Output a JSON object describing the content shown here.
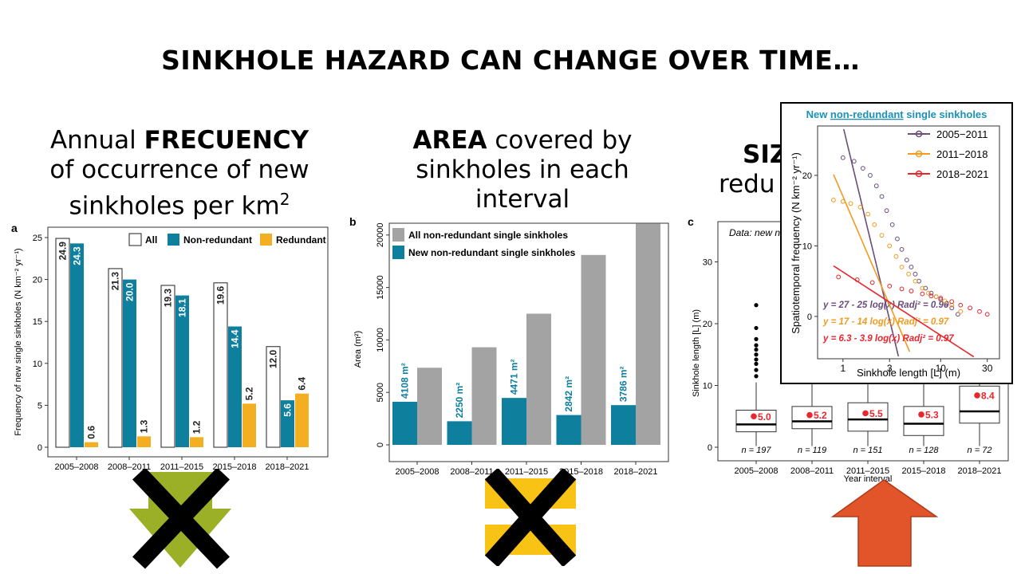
{
  "title": "SINKHOLE HAZARD CAN CHANGE OVER TIME…",
  "headings": {
    "a": {
      "pre": "Annual ",
      "bold": "FRECUENCY",
      "line2": "of occurrence of new",
      "line3": "sinkholes per km",
      "sup": "2"
    },
    "b": {
      "bold": "AREA",
      "post": " covered by",
      "line2": "sinkholes in each",
      "line3": "interval"
    },
    "c": {
      "bold": "SIZ",
      "line2": "redu"
    }
  },
  "chart_data": [
    {
      "panel": "a",
      "type": "bar",
      "categories": [
        "2005–2008",
        "2008–2011",
        "2011–2015",
        "2015–2018",
        "2018–2021"
      ],
      "series": [
        {
          "name": "All",
          "values": [
            24.9,
            21.3,
            19.3,
            19.6,
            12.0
          ],
          "color": "#ffffff"
        },
        {
          "name": "Non-redundant",
          "values": [
            24.3,
            20.0,
            18.1,
            14.4,
            5.6
          ],
          "color": "#0f7f9e"
        },
        {
          "name": "Redundant",
          "values": [
            0.6,
            1.3,
            1.2,
            5.2,
            6.4
          ],
          "color": "#f4ae22"
        }
      ],
      "value_labels": [
        [
          "24.9",
          "21.3",
          "19.3",
          "19.6",
          "12.0"
        ],
        [
          "24.3",
          "20.0",
          "18.1",
          "14.4",
          "5.6"
        ],
        [
          "0.6",
          "1.3",
          "1.2",
          "5.2",
          "6.4"
        ]
      ],
      "ylabel": "Frequency of new single sinkholes (N km⁻² yr⁻¹)",
      "yticks": [
        "0",
        "5",
        "10",
        "15",
        "20",
        "25"
      ],
      "ylim": [
        0,
        26
      ],
      "legend": "top-right"
    },
    {
      "panel": "b",
      "type": "bar",
      "categories": [
        "2005–2008",
        "2008–2011",
        "2011–2015",
        "2015–2018",
        "2018–2021"
      ],
      "series": [
        {
          "name": "New non-redundant single sinkholes",
          "values": [
            4108,
            2250,
            4471,
            2842,
            3786
          ],
          "color": "#0f7f9e"
        },
        {
          "name": "All non-redundant single sinkholes",
          "values": [
            7350,
            9300,
            12500,
            18100,
            21100
          ],
          "color": "#a3a3a3"
        }
      ],
      "value_labels": [
        "4108 m²",
        "2250 m²",
        "4471 m²",
        "2842 m²",
        "3786 m²"
      ],
      "ylabel": "Area (m²)",
      "yticks": [
        "0",
        "5000",
        "10000",
        "15000",
        "20000"
      ],
      "ylim": [
        0,
        22000
      ],
      "legend": "top-left"
    },
    {
      "panel": "c",
      "type": "box",
      "categories": [
        "2005–2008",
        "2008–2011",
        "2011–2015",
        "2015–2018",
        "2018–2021"
      ],
      "q1": [
        2.5,
        3.0,
        2.6,
        1.9,
        3.9
      ],
      "median": [
        3.7,
        4.2,
        4.5,
        3.8,
        5.8
      ],
      "q3": [
        6.0,
        6.6,
        7.2,
        6.6,
        9.9
      ],
      "mean": [
        5.0,
        5.2,
        5.5,
        5.3,
        8.4
      ],
      "mean_labels": [
        "5.0",
        "5.2",
        "5.5",
        "5.3",
        "8.4"
      ],
      "n_labels": [
        "n = 197",
        "n = 119",
        "n = 151",
        "n = 128",
        "n = 72"
      ],
      "outliers_first": [
        11.5,
        12.5,
        13.5,
        14.2,
        15.0,
        15.8,
        16.5,
        17.5,
        19.3,
        23.0
      ],
      "ylabel": "Sinkhole length [L] (m)",
      "xlabel": "Year interval",
      "yticks": [
        "0",
        "10",
        "20",
        "30"
      ],
      "ylim": [
        -1,
        36
      ],
      "data_note": "Data: new n"
    },
    {
      "panel": "inset",
      "type": "line",
      "title_parts": [
        "New ",
        "non-redundant",
        " single sinkholes"
      ],
      "xlabel": "Sinkhole length [L] (m)",
      "ylabel": "Spatiotemporal frequency (N km⁻² yr⁻¹)",
      "xticks": [
        "1",
        "3",
        "10",
        "30"
      ],
      "yticks": [
        "0",
        "10",
        "20"
      ],
      "x_scale": "log",
      "xlim": [
        0.55,
        40
      ],
      "ylim": [
        -6,
        27
      ],
      "series": [
        {
          "name": "2005−2011",
          "color": "#6b4c7a",
          "a": 27,
          "b": 25,
          "x_range": [
            0.8,
            20
          ],
          "points_x": [
            1.0,
            1.3,
            1.6,
            1.9,
            2.2,
            2.5,
            2.8,
            3.2,
            3.6,
            4.0,
            4.5,
            5.0,
            5.5,
            6.0,
            7.0,
            8.0,
            9.0,
            10.0,
            11.5,
            13.0,
            15.0
          ],
          "points_y": [
            22.5,
            22.0,
            21.0,
            20.0,
            18.5,
            17.0,
            15.0,
            13.0,
            11.0,
            9.5,
            8.0,
            7.0,
            6.0,
            5.0,
            4.0,
            3.3,
            2.8,
            2.4,
            1.8,
            1.2,
            0.3
          ],
          "equation": "y = 27 - 25 log(x) R",
          "r2": "= 0.96"
        },
        {
          "name": "2011−2018",
          "color": "#f39a1f",
          "a": 17,
          "b": 14,
          "x_range": [
            0.8,
            35
          ],
          "points_x": [
            0.8,
            1.0,
            1.2,
            1.5,
            1.8,
            2.1,
            2.5,
            3.0,
            3.5,
            4.0,
            4.7,
            5.5,
            6.5,
            7.5,
            9.0,
            11.0,
            13.0,
            16.0
          ],
          "points_y": [
            16.5,
            16.3,
            16.0,
            15.5,
            14.5,
            13.0,
            11.5,
            10.0,
            8.5,
            7.0,
            6.0,
            5.0,
            4.0,
            3.3,
            2.8,
            2.2,
            1.6,
            0.7
          ],
          "equation": "y = 17 - 14 log(x) R",
          "r2": "= 0.97"
        },
        {
          "name": "2018−2021",
          "color": "#e8262c",
          "a": 6.3,
          "b": 3.9,
          "x_range": [
            0.8,
            35
          ],
          "points_x": [
            0.9,
            1.4,
            2.0,
            3.0,
            4.0,
            5.0,
            6.5,
            8.0,
            10.0,
            13.0,
            16.0,
            20.0,
            25.0,
            30.0
          ],
          "points_y": [
            5.6,
            5.2,
            4.8,
            4.3,
            3.9,
            3.6,
            3.2,
            2.9,
            2.6,
            2.1,
            1.6,
            1.2,
            0.7,
            0.3
          ],
          "equation": "y = 6.3 - 3.9 log(x) R",
          "r2": "= 0.97"
        }
      ],
      "legend": "top-right"
    }
  ],
  "panel_letters": {
    "a": "a",
    "b": "b",
    "c": "c"
  },
  "symbols": {
    "a": {
      "icon": "green-down-arrow-crossed",
      "color": "#9bb026"
    },
    "b": {
      "icon": "yellow-equals-crossed",
      "color": "#f9c315"
    },
    "c": {
      "icon": "orange-up-arrow",
      "color": "#e2542a"
    }
  }
}
